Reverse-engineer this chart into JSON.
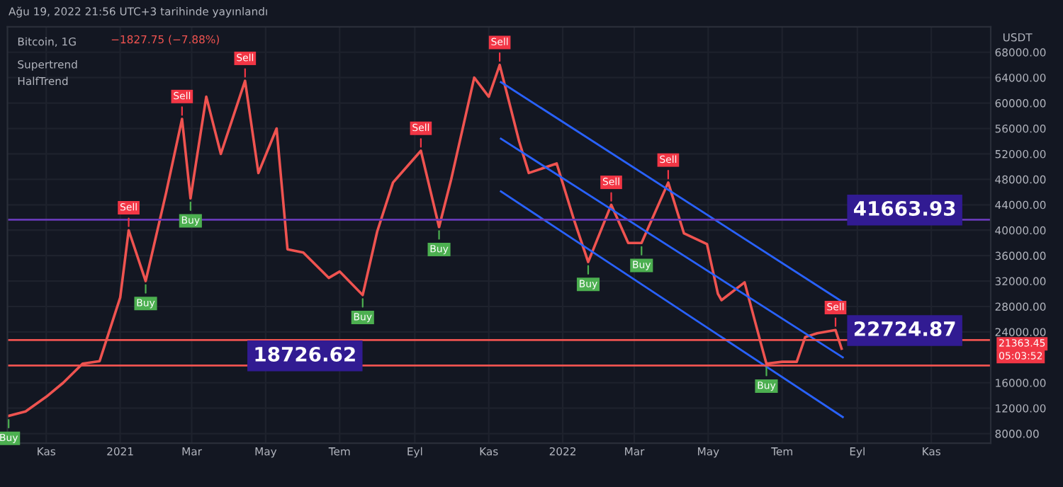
{
  "chart_data": {
    "type": "line",
    "title": "Bitcoin, 1G",
    "subtitle": "−1827.75 (−7.88%)",
    "ylabel": "USDT",
    "x": [
      "2020-10-01",
      "2020-10-15",
      "2020-11-01",
      "2020-11-15",
      "2020-12-01",
      "2020-12-15",
      "2021-01-01",
      "2021-01-08",
      "2021-01-22",
      "2021-02-08",
      "2021-02-21",
      "2021-02-28",
      "2021-03-13",
      "2021-03-25",
      "2021-04-14",
      "2021-04-25",
      "2021-05-10",
      "2021-05-19",
      "2021-06-01",
      "2021-06-22",
      "2021-07-01",
      "2021-07-20",
      "2021-08-01",
      "2021-08-14",
      "2021-09-06",
      "2021-09-21",
      "2021-10-01",
      "2021-10-20",
      "2021-11-01",
      "2021-11-10",
      "2021-11-26",
      "2021-12-04",
      "2021-12-27",
      "2022-01-10",
      "2022-01-22",
      "2022-02-10",
      "2022-02-24",
      "2022-03-07",
      "2022-03-29",
      "2022-04-11",
      "2022-04-30",
      "2022-05-09",
      "2022-05-12",
      "2022-05-31",
      "2022-06-13",
      "2022-06-18",
      "2022-07-01",
      "2022-07-13",
      "2022-07-20",
      "2022-07-30",
      "2022-08-14",
      "2022-08-19"
    ],
    "series": [
      {
        "color": "#ef5350",
        "values": [
          10800,
          11500,
          13800,
          16000,
          19000,
          19400,
          29400,
          40000,
          32000,
          46000,
          57500,
          45000,
          61000,
          52000,
          63500,
          49000,
          56000,
          37000,
          36500,
          32500,
          33500,
          29800,
          39800,
          47500,
          52500,
          40500,
          48000,
          64000,
          61000,
          66000,
          54000,
          49000,
          50500,
          41800,
          35000,
          44000,
          38000,
          38000,
          47500,
          39500,
          37800,
          30000,
          29000,
          31800,
          22500,
          19000,
          19300,
          19300,
          23200,
          23800,
          24300,
          21363
        ]
      },
      {
        "color": "#2962ff",
        "x": [
          "2021-11-11",
          "2022-08-20"
        ],
        "values": [
          63300,
          28700
        ]
      },
      {
        "color": "#2962ff",
        "x": [
          "2021-11-11",
          "2022-08-20"
        ],
        "values": [
          54400,
          20000
        ]
      },
      {
        "color": "#2962ff",
        "x": [
          "2021-11-11",
          "2022-08-20"
        ],
        "values": [
          46100,
          10600
        ]
      }
    ],
    "xlim": [
      "2020-09-30",
      "2022-12-20"
    ],
    "xticks": [
      {
        "value": "2020-11-01",
        "label": "Kas"
      },
      {
        "value": "2021-01-01",
        "label": "2021"
      },
      {
        "value": "2021-03-01",
        "label": "Mar"
      },
      {
        "value": "2021-05-01",
        "label": "May"
      },
      {
        "value": "2021-07-01",
        "label": "Tem"
      },
      {
        "value": "2021-09-01",
        "label": "Eyl"
      },
      {
        "value": "2021-11-01",
        "label": "Kas"
      },
      {
        "value": "2022-01-01",
        "label": "2022"
      },
      {
        "value": "2022-03-01",
        "label": "Mar"
      },
      {
        "value": "2022-05-01",
        "label": "May"
      },
      {
        "value": "2022-07-01",
        "label": "Tem"
      },
      {
        "value": "2022-09-01",
        "label": "Eyl"
      },
      {
        "value": "2022-11-01",
        "label": "Kas"
      }
    ],
    "ylim": [
      6500,
      72000
    ],
    "yticks": [
      {
        "value": 8000,
        "label": "8000.00"
      },
      {
        "value": 12000,
        "label": "12000.00"
      },
      {
        "value": 16000,
        "label": "16000.00"
      },
      {
        "value": 24000,
        "label": "24000.00"
      },
      {
        "value": 28000,
        "label": "28000.00"
      },
      {
        "value": 32000,
        "label": "32000.00"
      },
      {
        "value": 36000,
        "label": "36000.00"
      },
      {
        "value": 40000,
        "label": "40000.00"
      },
      {
        "value": 44000,
        "label": "44000.00"
      },
      {
        "value": 48000,
        "label": "48000.00"
      },
      {
        "value": 52000,
        "label": "52000.00"
      },
      {
        "value": 56000,
        "label": "56000.00"
      },
      {
        "value": 60000,
        "label": "60000.00"
      },
      {
        "value": 64000,
        "label": "64000.00"
      },
      {
        "value": 68000,
        "label": "68000.00"
      }
    ],
    "grid": true,
    "ref_lines": [
      {
        "axis": "y",
        "value": 41663.93,
        "label": "41663.93",
        "color": "#673ab7"
      },
      {
        "axis": "y",
        "value": 22724.87,
        "label": "22724.87",
        "color": "#ef5350"
      },
      {
        "axis": "y",
        "value": 18726.62,
        "label": "18726.62",
        "color": "#ef5350"
      }
    ],
    "annotations": [
      "Ağu 19, 2022 21:56 UTC+3 tarihinde yayınlandı",
      "Supertrend",
      "HalfTrend",
      "21363.45",
      "05:03:52",
      {
        "text": "Buy",
        "x": "2020-10-01",
        "y": 10800
      },
      {
        "text": "Sell",
        "x": "2021-01-08",
        "y": 40000
      },
      {
        "text": "Buy",
        "x": "2021-01-22",
        "y": 32000
      },
      {
        "text": "Sell",
        "x": "2021-02-21",
        "y": 57500
      },
      {
        "text": "Buy",
        "x": "2021-02-28",
        "y": 45000
      },
      {
        "text": "Sell",
        "x": "2021-04-14",
        "y": 63500
      },
      {
        "text": "Buy",
        "x": "2021-07-20",
        "y": 29800
      },
      {
        "text": "Sell",
        "x": "2021-09-06",
        "y": 52500
      },
      {
        "text": "Buy",
        "x": "2021-09-21",
        "y": 40500
      },
      {
        "text": "Sell",
        "x": "2021-11-10",
        "y": 66000
      },
      {
        "text": "Buy",
        "x": "2022-01-22",
        "y": 35000
      },
      {
        "text": "Sell",
        "x": "2022-02-10",
        "y": 44000
      },
      {
        "text": "Buy",
        "x": "2022-03-07",
        "y": 38000
      },
      {
        "text": "Sell",
        "x": "2022-03-29",
        "y": 47500
      },
      {
        "text": "Buy",
        "x": "2022-06-18",
        "y": 19000
      },
      {
        "text": "Sell",
        "x": "2022-08-14",
        "y": 24300
      }
    ]
  }
}
